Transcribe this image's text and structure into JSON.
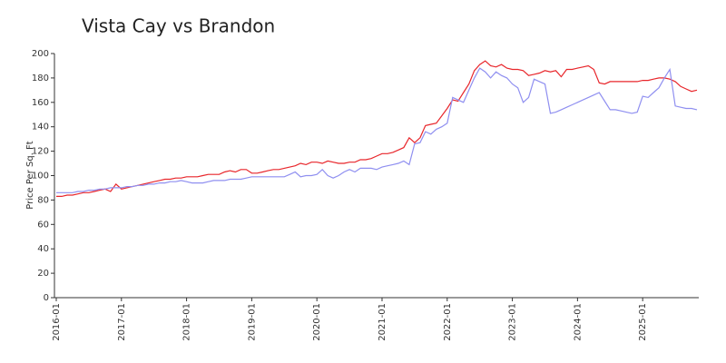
{
  "chart_data": {
    "type": "line",
    "title": "Vista Cay vs Brandon",
    "y_label": "Price Per Sq. Ft",
    "x": [
      "2016-01",
      "2016-02",
      "2016-03",
      "2016-04",
      "2016-05",
      "2016-06",
      "2016-07",
      "2016-08",
      "2016-09",
      "2016-10",
      "2016-11",
      "2016-12",
      "2017-01",
      "2017-02",
      "2017-03",
      "2017-04",
      "2017-05",
      "2017-06",
      "2017-07",
      "2017-08",
      "2017-09",
      "2017-10",
      "2017-11",
      "2017-12",
      "2018-01",
      "2018-02",
      "2018-03",
      "2018-04",
      "2018-05",
      "2018-06",
      "2018-07",
      "2018-08",
      "2018-09",
      "2018-10",
      "2018-11",
      "2018-12",
      "2019-01",
      "2019-02",
      "2019-03",
      "2019-04",
      "2019-05",
      "2019-06",
      "2019-07",
      "2019-08",
      "2019-09",
      "2019-10",
      "2019-11",
      "2019-12",
      "2020-01",
      "2020-02",
      "2020-03",
      "2020-04",
      "2020-05",
      "2020-06",
      "2020-07",
      "2020-08",
      "2020-09",
      "2020-10",
      "2020-11",
      "2020-12",
      "2021-01",
      "2021-02",
      "2021-03",
      "2021-04",
      "2021-05",
      "2021-06",
      "2021-07",
      "2021-08",
      "2021-09",
      "2021-10",
      "2021-11",
      "2021-12",
      "2022-01",
      "2022-02",
      "2022-03",
      "2022-04",
      "2022-05",
      "2022-06",
      "2022-07",
      "2022-08",
      "2022-09",
      "2022-10",
      "2022-11",
      "2022-12",
      "2023-01",
      "2023-02",
      "2023-03",
      "2023-04",
      "2023-05",
      "2023-06",
      "2023-07",
      "2023-08",
      "2023-09",
      "2023-10",
      "2023-11",
      "2023-12",
      "2024-01",
      "2024-02",
      "2024-03",
      "2024-04",
      "2024-05",
      "2024-06",
      "2024-07",
      "2024-08",
      "2024-09",
      "2024-10",
      "2024-11",
      "2024-12",
      "2025-01",
      "2025-02",
      "2025-03",
      "2025-04",
      "2025-05",
      "2025-06",
      "2025-07",
      "2025-08",
      "2025-09",
      "2025-10",
      "2025-11"
    ],
    "series": [
      {
        "color": "#e8262b",
        "values": [
          83,
          83,
          84,
          84,
          85,
          86,
          86,
          87,
          88,
          89,
          87,
          93,
          89,
          90,
          91,
          92,
          93,
          94,
          95,
          96,
          97,
          97,
          98,
          98,
          99,
          99,
          99,
          100,
          101,
          101,
          101,
          103,
          104,
          103,
          105,
          105,
          102,
          102,
          103,
          104,
          105,
          105,
          106,
          107,
          108,
          110,
          109,
          111,
          111,
          110,
          112,
          111,
          110,
          110,
          111,
          111,
          113,
          113,
          114,
          116,
          118,
          118,
          119,
          121,
          123,
          131,
          127,
          131,
          141,
          142,
          143,
          149,
          155,
          162,
          161,
          168,
          175,
          186,
          191,
          194,
          190,
          189,
          191,
          188,
          187,
          187,
          186,
          182,
          183,
          184,
          186,
          185,
          186,
          181,
          187,
          187,
          188,
          189,
          190,
          187,
          176,
          175,
          177,
          177,
          177,
          177,
          177,
          177,
          178,
          178,
          179,
          180,
          180,
          179,
          177,
          173,
          171,
          169,
          170
        ]
      },
      {
        "color": "#8f8ff0",
        "values": [
          86,
          86,
          86,
          86,
          87,
          87,
          88,
          88,
          89,
          89,
          90,
          90,
          90,
          91,
          91,
          92,
          92,
          93,
          93,
          94,
          94,
          95,
          95,
          96,
          95,
          94,
          94,
          94,
          95,
          96,
          96,
          96,
          97,
          97,
          97,
          98,
          99,
          99,
          99,
          99,
          99,
          99,
          99,
          101,
          103,
          99,
          100,
          100,
          101,
          105,
          100,
          98,
          100,
          103,
          105,
          103,
          106,
          106,
          106,
          105,
          107,
          108,
          109,
          110,
          112,
          109,
          126,
          127,
          136,
          134,
          138,
          140,
          143,
          164,
          162,
          160,
          170,
          180,
          188,
          185,
          180,
          185,
          182,
          180,
          175,
          172,
          160,
          164,
          179,
          177,
          175,
          151,
          152,
          154,
          156,
          158,
          160,
          162,
          164,
          166,
          168,
          161,
          154,
          154,
          153,
          152,
          151,
          152,
          165,
          164,
          168,
          172,
          180,
          187,
          157,
          156,
          155,
          155,
          154
        ]
      }
    ],
    "ylim": [
      0,
      200
    ],
    "yticks": [
      0,
      20,
      40,
      60,
      80,
      100,
      120,
      140,
      160,
      180,
      200
    ],
    "xticks": [
      "2016-01",
      "2017-01",
      "2018-01",
      "2019-01",
      "2020-01",
      "2021-01",
      "2022-01",
      "2023-01",
      "2024-01",
      "2025-01"
    ],
    "grid": false
  }
}
